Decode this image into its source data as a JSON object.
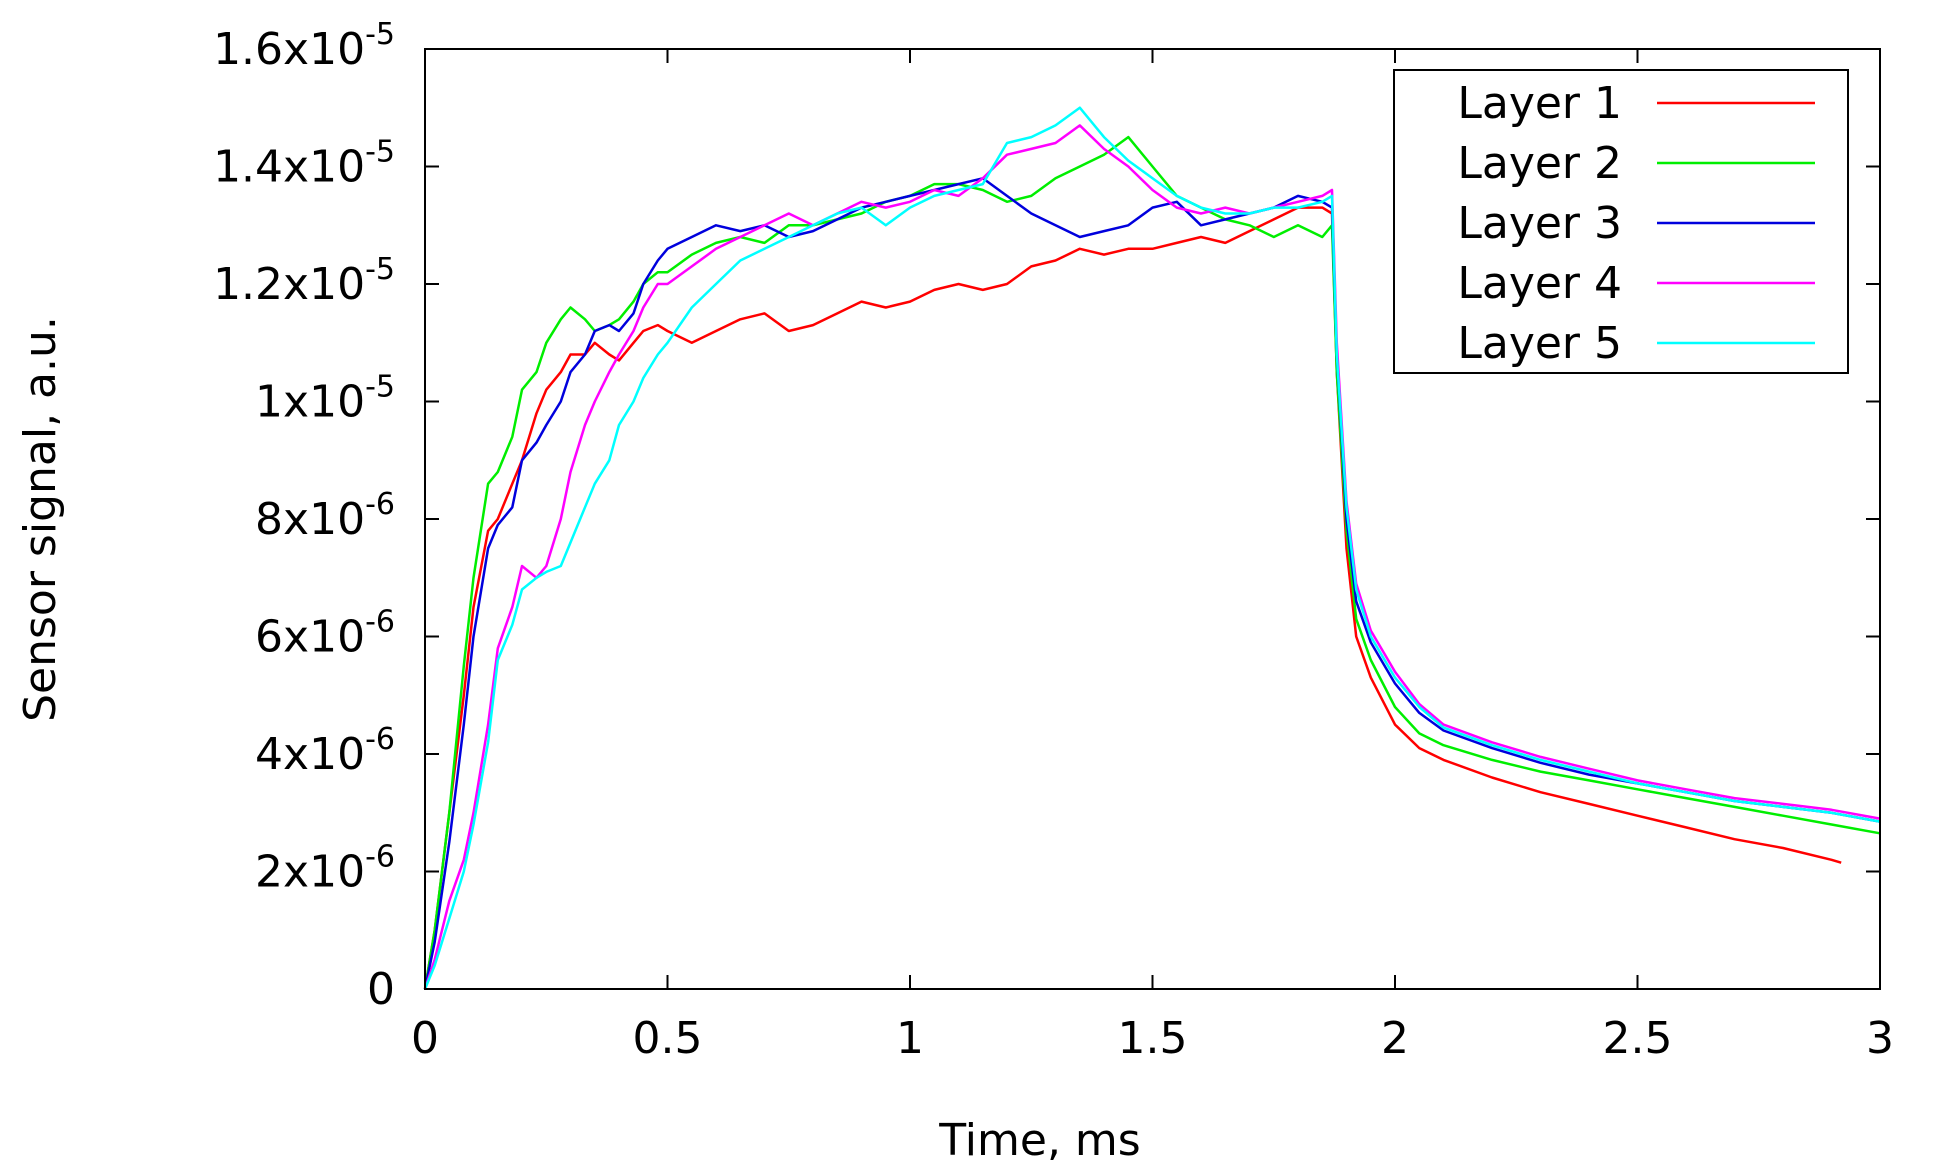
{
  "chart_data": {
    "type": "line",
    "xlabel": "Time, ms",
    "ylabel": "Sensor signal, a.u.",
    "xlim": [
      0,
      3
    ],
    "ylim": [
      0,
      1.6e-05
    ],
    "x_ticks": [
      {
        "value": 0,
        "label": "0"
      },
      {
        "value": 0.5,
        "label": "0.5"
      },
      {
        "value": 1,
        "label": "1"
      },
      {
        "value": 1.5,
        "label": "1.5"
      },
      {
        "value": 2,
        "label": "2"
      },
      {
        "value": 2.5,
        "label": "2.5"
      },
      {
        "value": 3,
        "label": "3"
      }
    ],
    "y_ticks": [
      {
        "value": 0,
        "mantissa": "0",
        "exponent": ""
      },
      {
        "value": 2e-06,
        "mantissa": "2x10",
        "exponent": "-6"
      },
      {
        "value": 4e-06,
        "mantissa": "4x10",
        "exponent": "-6"
      },
      {
        "value": 6e-06,
        "mantissa": "6x10",
        "exponent": "-6"
      },
      {
        "value": 8e-06,
        "mantissa": "8x10",
        "exponent": "-6"
      },
      {
        "value": 1e-05,
        "mantissa": "1x10",
        "exponent": "-5"
      },
      {
        "value": 1.2e-05,
        "mantissa": "1.2x10",
        "exponent": "-5"
      },
      {
        "value": 1.4e-05,
        "mantissa": "1.4x10",
        "exponent": "-5"
      },
      {
        "value": 1.6e-05,
        "mantissa": "1.6x10",
        "exponent": "-5"
      }
    ],
    "grid": false,
    "legend_position": "top-right",
    "series": [
      {
        "name": "Layer 1",
        "color": "#ff0000",
        "x": [
          0,
          0.02,
          0.05,
          0.08,
          0.1,
          0.13,
          0.15,
          0.18,
          0.2,
          0.23,
          0.25,
          0.28,
          0.3,
          0.33,
          0.35,
          0.38,
          0.4,
          0.43,
          0.45,
          0.48,
          0.5,
          0.55,
          0.6,
          0.65,
          0.7,
          0.75,
          0.8,
          0.85,
          0.9,
          0.95,
          1.0,
          1.05,
          1.1,
          1.15,
          1.2,
          1.25,
          1.3,
          1.35,
          1.4,
          1.45,
          1.5,
          1.55,
          1.6,
          1.65,
          1.7,
          1.75,
          1.8,
          1.85,
          1.87,
          1.88,
          1.9,
          1.92,
          1.95,
          2.0,
          2.05,
          2.1,
          2.2,
          2.3,
          2.4,
          2.5,
          2.6,
          2.7,
          2.8,
          2.9,
          2.92
        ],
        "y": [
          0.0,
          1e-06,
          3e-06,
          5e-06,
          6.5e-06,
          7.8e-06,
          8e-06,
          8.6e-06,
          9e-06,
          9.8e-06,
          1.02e-05,
          1.05e-05,
          1.08e-05,
          1.08e-05,
          1.1e-05,
          1.08e-05,
          1.07e-05,
          1.1e-05,
          1.12e-05,
          1.13e-05,
          1.12e-05,
          1.1e-05,
          1.12e-05,
          1.14e-05,
          1.15e-05,
          1.12e-05,
          1.13e-05,
          1.15e-05,
          1.17e-05,
          1.16e-05,
          1.17e-05,
          1.19e-05,
          1.2e-05,
          1.19e-05,
          1.2e-05,
          1.23e-05,
          1.24e-05,
          1.26e-05,
          1.25e-05,
          1.26e-05,
          1.26e-05,
          1.27e-05,
          1.28e-05,
          1.27e-05,
          1.29e-05,
          1.31e-05,
          1.33e-05,
          1.33e-05,
          1.32e-05,
          1.05e-05,
          7.5e-06,
          6e-06,
          5.3e-06,
          4.5e-06,
          4.1e-06,
          3.9e-06,
          3.6e-06,
          3.35e-06,
          3.15e-06,
          2.95e-06,
          2.75e-06,
          2.55e-06,
          2.4e-06,
          2.2e-06,
          2.15e-06
        ]
      },
      {
        "name": "Layer 2",
        "color": "#00ee00",
        "x": [
          0,
          0.02,
          0.05,
          0.08,
          0.1,
          0.13,
          0.15,
          0.18,
          0.2,
          0.23,
          0.25,
          0.28,
          0.3,
          0.33,
          0.35,
          0.38,
          0.4,
          0.43,
          0.45,
          0.48,
          0.5,
          0.55,
          0.6,
          0.65,
          0.7,
          0.75,
          0.8,
          0.85,
          0.9,
          0.95,
          1.0,
          1.05,
          1.1,
          1.15,
          1.2,
          1.25,
          1.3,
          1.35,
          1.4,
          1.45,
          1.5,
          1.55,
          1.6,
          1.65,
          1.7,
          1.75,
          1.8,
          1.85,
          1.87,
          1.88,
          1.9,
          1.92,
          1.95,
          2.0,
          2.05,
          2.1,
          2.2,
          2.3,
          2.4,
          2.5,
          2.6,
          2.7,
          2.8,
          2.9,
          3.0
        ],
        "y": [
          0.0,
          1e-06,
          3e-06,
          5.5e-06,
          7e-06,
          8.6e-06,
          8.8e-06,
          9.4e-06,
          1.02e-05,
          1.05e-05,
          1.1e-05,
          1.14e-05,
          1.16e-05,
          1.14e-05,
          1.12e-05,
          1.13e-05,
          1.14e-05,
          1.17e-05,
          1.2e-05,
          1.22e-05,
          1.22e-05,
          1.25e-05,
          1.27e-05,
          1.28e-05,
          1.27e-05,
          1.3e-05,
          1.3e-05,
          1.31e-05,
          1.32e-05,
          1.34e-05,
          1.35e-05,
          1.37e-05,
          1.37e-05,
          1.36e-05,
          1.34e-05,
          1.35e-05,
          1.38e-05,
          1.4e-05,
          1.42e-05,
          1.45e-05,
          1.4e-05,
          1.35e-05,
          1.33e-05,
          1.31e-05,
          1.3e-05,
          1.28e-05,
          1.3e-05,
          1.28e-05,
          1.3e-05,
          1.05e-05,
          7.8e-06,
          6.3e-06,
          5.6e-06,
          4.8e-06,
          4.35e-06,
          4.15e-06,
          3.9e-06,
          3.7e-06,
          3.55e-06,
          3.4e-06,
          3.25e-06,
          3.1e-06,
          2.95e-06,
          2.8e-06,
          2.65e-06
        ]
      },
      {
        "name": "Layer 3",
        "color": "#0000dd",
        "x": [
          0,
          0.02,
          0.05,
          0.08,
          0.1,
          0.13,
          0.15,
          0.18,
          0.2,
          0.23,
          0.25,
          0.28,
          0.3,
          0.33,
          0.35,
          0.38,
          0.4,
          0.43,
          0.45,
          0.48,
          0.5,
          0.55,
          0.6,
          0.65,
          0.7,
          0.75,
          0.8,
          0.85,
          0.9,
          0.95,
          1.0,
          1.05,
          1.1,
          1.15,
          1.2,
          1.25,
          1.3,
          1.35,
          1.4,
          1.45,
          1.5,
          1.55,
          1.6,
          1.65,
          1.7,
          1.75,
          1.8,
          1.85,
          1.87,
          1.88,
          1.9,
          1.92,
          1.95,
          2.0,
          2.05,
          2.1,
          2.2,
          2.3,
          2.4,
          2.5,
          2.6,
          2.7,
          2.8,
          2.9,
          3.0
        ],
        "y": [
          0.0,
          8e-07,
          2.5e-06,
          4.5e-06,
          6e-06,
          7.5e-06,
          7.9e-06,
          8.2e-06,
          9e-06,
          9.3e-06,
          9.6e-06,
          1e-05,
          1.05e-05,
          1.08e-05,
          1.12e-05,
          1.13e-05,
          1.12e-05,
          1.15e-05,
          1.2e-05,
          1.24e-05,
          1.26e-05,
          1.28e-05,
          1.3e-05,
          1.29e-05,
          1.3e-05,
          1.28e-05,
          1.29e-05,
          1.31e-05,
          1.33e-05,
          1.34e-05,
          1.35e-05,
          1.36e-05,
          1.37e-05,
          1.38e-05,
          1.35e-05,
          1.32e-05,
          1.3e-05,
          1.28e-05,
          1.29e-05,
          1.3e-05,
          1.33e-05,
          1.34e-05,
          1.3e-05,
          1.31e-05,
          1.32e-05,
          1.33e-05,
          1.35e-05,
          1.34e-05,
          1.33e-05,
          1.08e-05,
          8e-06,
          6.6e-06,
          5.9e-06,
          5.2e-06,
          4.7e-06,
          4.4e-06,
          4.1e-06,
          3.85e-06,
          3.65e-06,
          3.5e-06,
          3.35e-06,
          3.2e-06,
          3.1e-06,
          3e-06,
          2.85e-06
        ]
      },
      {
        "name": "Layer 4",
        "color": "#ff00ff",
        "x": [
          0,
          0.02,
          0.05,
          0.08,
          0.1,
          0.13,
          0.15,
          0.18,
          0.2,
          0.23,
          0.25,
          0.28,
          0.3,
          0.33,
          0.35,
          0.38,
          0.4,
          0.43,
          0.45,
          0.48,
          0.5,
          0.55,
          0.6,
          0.65,
          0.7,
          0.75,
          0.8,
          0.85,
          0.9,
          0.95,
          1.0,
          1.05,
          1.1,
          1.15,
          1.2,
          1.25,
          1.3,
          1.35,
          1.4,
          1.45,
          1.5,
          1.55,
          1.6,
          1.65,
          1.7,
          1.75,
          1.8,
          1.85,
          1.87,
          1.88,
          1.9,
          1.92,
          1.95,
          2.0,
          2.05,
          2.1,
          2.2,
          2.3,
          2.4,
          2.5,
          2.6,
          2.7,
          2.8,
          2.9,
          3.0
        ],
        "y": [
          0.0,
          5e-07,
          1.5e-06,
          2.2e-06,
          3e-06,
          4.5e-06,
          5.8e-06,
          6.5e-06,
          7.2e-06,
          7e-06,
          7.2e-06,
          8e-06,
          8.8e-06,
          9.6e-06,
          1e-05,
          1.05e-05,
          1.08e-05,
          1.12e-05,
          1.16e-05,
          1.2e-05,
          1.2e-05,
          1.23e-05,
          1.26e-05,
          1.28e-05,
          1.3e-05,
          1.32e-05,
          1.3e-05,
          1.32e-05,
          1.34e-05,
          1.33e-05,
          1.34e-05,
          1.36e-05,
          1.35e-05,
          1.38e-05,
          1.42e-05,
          1.43e-05,
          1.44e-05,
          1.47e-05,
          1.43e-05,
          1.4e-05,
          1.36e-05,
          1.33e-05,
          1.32e-05,
          1.33e-05,
          1.32e-05,
          1.33e-05,
          1.34e-05,
          1.35e-05,
          1.36e-05,
          1.1e-05,
          8.3e-06,
          6.9e-06,
          6.1e-06,
          5.4e-06,
          4.85e-06,
          4.5e-06,
          4.2e-06,
          3.95e-06,
          3.75e-06,
          3.55e-06,
          3.4e-06,
          3.25e-06,
          3.15e-06,
          3.05e-06,
          2.9e-06
        ]
      },
      {
        "name": "Layer 5",
        "color": "#00ffff",
        "x": [
          0,
          0.02,
          0.05,
          0.08,
          0.1,
          0.13,
          0.15,
          0.18,
          0.2,
          0.23,
          0.25,
          0.28,
          0.3,
          0.33,
          0.35,
          0.38,
          0.4,
          0.43,
          0.45,
          0.48,
          0.5,
          0.55,
          0.6,
          0.65,
          0.7,
          0.75,
          0.8,
          0.85,
          0.9,
          0.95,
          1.0,
          1.05,
          1.1,
          1.15,
          1.2,
          1.25,
          1.3,
          1.35,
          1.4,
          1.45,
          1.5,
          1.55,
          1.6,
          1.65,
          1.7,
          1.75,
          1.8,
          1.85,
          1.87,
          1.88,
          1.9,
          1.92,
          1.95,
          2.0,
          2.05,
          2.1,
          2.2,
          2.3,
          2.4,
          2.5,
          2.6,
          2.7,
          2.8,
          2.9,
          3.0
        ],
        "y": [
          0.0,
          4e-07,
          1.2e-06,
          2e-06,
          2.8e-06,
          4.2e-06,
          5.6e-06,
          6.2e-06,
          6.8e-06,
          7e-06,
          7.1e-06,
          7.2e-06,
          7.6e-06,
          8.2e-06,
          8.6e-06,
          9e-06,
          9.6e-06,
          1e-05,
          1.04e-05,
          1.08e-05,
          1.1e-05,
          1.16e-05,
          1.2e-05,
          1.24e-05,
          1.26e-05,
          1.28e-05,
          1.3e-05,
          1.32e-05,
          1.33e-05,
          1.3e-05,
          1.33e-05,
          1.35e-05,
          1.36e-05,
          1.37e-05,
          1.44e-05,
          1.45e-05,
          1.47e-05,
          1.5e-05,
          1.45e-05,
          1.41e-05,
          1.38e-05,
          1.35e-05,
          1.33e-05,
          1.32e-05,
          1.32e-05,
          1.33e-05,
          1.33e-05,
          1.34e-05,
          1.35e-05,
          1.08e-05,
          8.2e-06,
          6.8e-06,
          6e-06,
          5.3e-06,
          4.8e-06,
          4.45e-06,
          4.15e-06,
          3.9e-06,
          3.7e-06,
          3.5e-06,
          3.35e-06,
          3.2e-06,
          3.1e-06,
          3e-06,
          2.85e-06
        ]
      }
    ]
  }
}
